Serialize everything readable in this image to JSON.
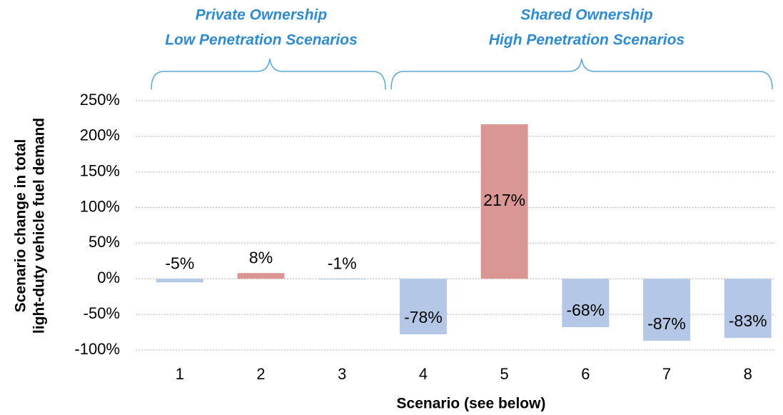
{
  "chart_data": {
    "type": "bar",
    "groups": [
      {
        "lines": [
          "Private Ownership",
          "Low Penetration Scenarios"
        ]
      },
      {
        "lines": [
          "Shared Ownership",
          "High Penetration Scenarios"
        ]
      }
    ],
    "xlabel": "Scenario (see below)",
    "ylabel": [
      "Scenario change in total",
      "light-duty vehicle fuel demand"
    ],
    "categories": [
      "1",
      "2",
      "3",
      "4",
      "5",
      "6",
      "7",
      "8"
    ],
    "values": [
      -5,
      8,
      -1,
      -78,
      217,
      -68,
      -87,
      -83
    ],
    "value_labels": [
      "-5%",
      "8%",
      "-1%",
      "-78%",
      "217%",
      "-68%",
      "-87%",
      "-83%"
    ],
    "colors": [
      "#b4c7e7",
      "#d99694",
      "#b4c7e7",
      "#b4c7e7",
      "#d99694",
      "#b4c7e7",
      "#b4c7e7",
      "#b4c7e7"
    ],
    "ylim": [
      -100,
      250
    ],
    "yticks": [
      {
        "value": -100,
        "label": "-100%"
      },
      {
        "value": -50,
        "label": "-50%"
      },
      {
        "value": 0,
        "label": "0%"
      },
      {
        "value": 50,
        "label": "50%"
      },
      {
        "value": 100,
        "label": "100%"
      },
      {
        "value": 150,
        "label": "150%"
      },
      {
        "value": 200,
        "label": "200%"
      },
      {
        "value": 250,
        "label": "250%"
      }
    ],
    "grid": true
  }
}
